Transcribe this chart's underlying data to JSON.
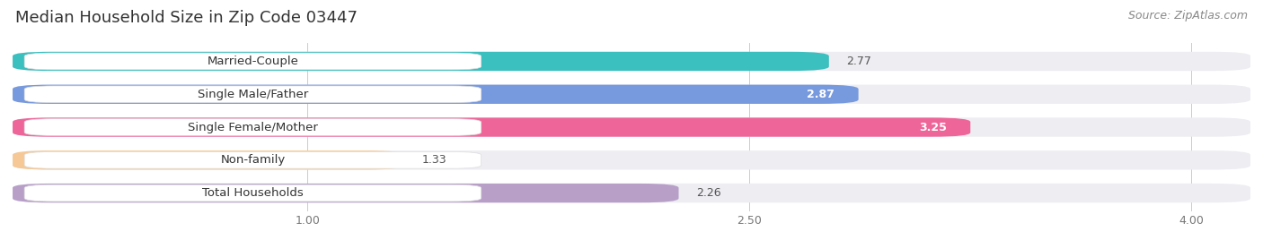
{
  "title": "Median Household Size in Zip Code 03447",
  "source": "Source: ZipAtlas.com",
  "categories": [
    "Married-Couple",
    "Single Male/Father",
    "Single Female/Mother",
    "Non-family",
    "Total Households"
  ],
  "values": [
    2.77,
    2.87,
    3.25,
    1.33,
    2.26
  ],
  "bar_colors": [
    "#3bbfbf",
    "#7799dd",
    "#ee6699",
    "#f5c896",
    "#b89fc8"
  ],
  "value_inside": [
    false,
    true,
    true,
    false,
    false
  ],
  "value_colors_inside": [
    "#ffffff",
    "#ffffff",
    "#ffffff",
    "#333333",
    "#333333"
  ],
  "value_colors_outside": [
    "#555555",
    "#555555",
    "#555555",
    "#555555",
    "#555555"
  ],
  "xlim": [
    0.0,
    4.2
  ],
  "xmin": 0.0,
  "xticks": [
    1.0,
    2.5,
    4.0
  ],
  "background_color": "#ffffff",
  "bar_bg_color": "#ededf2",
  "title_fontsize": 13,
  "source_fontsize": 9,
  "label_fontsize": 9.5,
  "value_fontsize": 9
}
